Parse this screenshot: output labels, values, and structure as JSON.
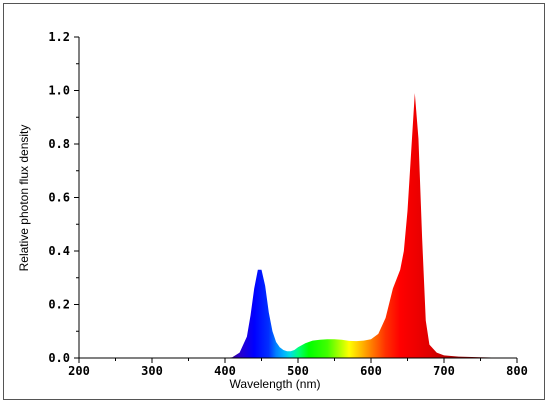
{
  "chart_data": {
    "type": "area",
    "title": "",
    "xlabel": "Wavelength (nm)",
    "ylabel": "Relative photon flux density",
    "xlim": [
      200,
      800
    ],
    "ylim": [
      0,
      1.2
    ],
    "x_ticks": [
      "200",
      "300",
      "400",
      "500",
      "600",
      "700",
      "800"
    ],
    "y_ticks": [
      "0.0",
      "0.2",
      "0.4",
      "0.6",
      "0.8",
      "1.0",
      "1.2"
    ],
    "x_tick_values": [
      200,
      300,
      400,
      500,
      600,
      700,
      800
    ],
    "y_tick_values": [
      0,
      0.2,
      0.4,
      0.6,
      0.8,
      1.0,
      1.2
    ],
    "grid": false,
    "fill": "visible-spectrum",
    "series": [
      {
        "x": [
          400,
          410,
          420,
          430,
          435,
          440,
          445,
          450,
          455,
          460,
          465,
          470,
          475,
          480,
          485,
          490,
          495,
          500,
          510,
          520,
          530,
          540,
          550,
          560,
          570,
          580,
          590,
          600,
          610,
          620,
          630,
          640,
          645,
          650,
          655,
          660,
          665,
          670,
          675,
          680,
          690,
          700,
          720,
          750,
          780,
          800
        ],
        "y": [
          0.0,
          0.003,
          0.02,
          0.08,
          0.16,
          0.26,
          0.33,
          0.33,
          0.27,
          0.17,
          0.1,
          0.06,
          0.04,
          0.03,
          0.025,
          0.025,
          0.03,
          0.04,
          0.055,
          0.065,
          0.068,
          0.07,
          0.07,
          0.068,
          0.064,
          0.063,
          0.065,
          0.07,
          0.09,
          0.15,
          0.26,
          0.33,
          0.4,
          0.55,
          0.77,
          0.99,
          0.82,
          0.45,
          0.14,
          0.05,
          0.02,
          0.01,
          0.005,
          0.003,
          0.001,
          0.0
        ]
      }
    ]
  }
}
